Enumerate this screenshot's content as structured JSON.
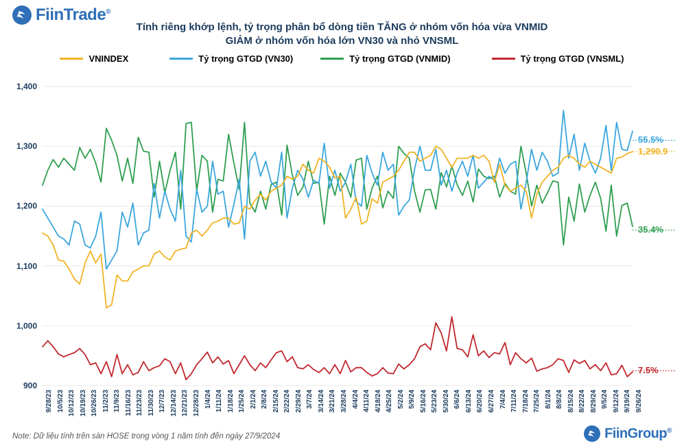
{
  "brand": {
    "top": "FiinTrade",
    "bottom": "FiinGroup",
    "reg": "®"
  },
  "title": {
    "line1": "Tính riêng khớp lệnh, tỷ trọng phân bổ dòng tiền TĂNG ở nhóm vốn hóa vừa VNMID",
    "line2": "GIẢM ở nhóm vốn hóa lớn VN30 và nhỏ VNSML"
  },
  "note": "Note: Dữ liệu tính trên sàn HOSE trong vòng 1 năm tính đến ngày 27/9/2024",
  "legend": {
    "vnindex": {
      "label": "VNINDEX",
      "color": "#f0b323"
    },
    "vn30": {
      "label": "Tỷ trọng GTGD (VN30)",
      "color": "#3aa6dd"
    },
    "vnmid": {
      "label": "Tỷ trọng GTGD (VNMID)",
      "color": "#2e9e4f"
    },
    "vnsml": {
      "label": "Tỷ trọng GTGD (VNSML)",
      "color": "#c1272d"
    }
  },
  "end_labels": {
    "vn30": {
      "text": "55.5%",
      "color": "#3aa6dd",
      "y": 1310
    },
    "vnindex": {
      "text": "1,290.9",
      "color": "#f0b323",
      "y": 1291
    },
    "vnmid": {
      "text": "35.4%",
      "color": "#2e9e4f",
      "y": 1160
    },
    "vnsml": {
      "text": "7.5%",
      "color": "#c1272d",
      "y": 925
    }
  },
  "chart": {
    "type": "line",
    "background_color": "#ffffff",
    "grid_color": "#e8e8e8",
    "text_color": "#1a3a5c",
    "axis_fontsize": 12,
    "x_label_fontsize": 10,
    "line_width": 1.8,
    "ylim": [
      900,
      1400
    ],
    "ytick_step": 100,
    "yticks": [
      900,
      1000,
      1100,
      1200,
      1300,
      1400
    ],
    "x_labels": [
      "9/28/23",
      "10/5/23",
      "10/12/23",
      "10/19/23",
      "10/26/23",
      "11/2/23",
      "11/9/23",
      "11/16/23",
      "11/23/23",
      "11/30/23",
      "12/7/23",
      "12/14/23",
      "12/21/23",
      "12/28/23",
      "1/4/24",
      "1/11/24",
      "1/18/24",
      "1/25/24",
      "2/1/24",
      "2/8/24",
      "2/15/24",
      "2/22/24",
      "2/29/24",
      "3/7/24",
      "3/14/24",
      "3/21/24",
      "3/28/24",
      "4/4/24",
      "4/11/24",
      "4/18/24",
      "4/25/24",
      "5/2/24",
      "5/9/24",
      "5/16/24",
      "5/23/24",
      "5/30/24",
      "6/6/24",
      "6/13/24",
      "6/20/24",
      "6/27/24",
      "7/4/24",
      "7/11/24",
      "7/18/24",
      "7/25/24",
      "8/1/24",
      "8/8/24",
      "8/15/24",
      "8/22/24",
      "8/29/24",
      "9/5/24",
      "9/12/24",
      "9/19/24",
      "9/26/24"
    ],
    "series": {
      "vnindex": {
        "color": "#f0b323",
        "values": [
          1155,
          1150,
          1135,
          1110,
          1108,
          1095,
          1078,
          1070,
          1105,
          1125,
          1105,
          1120,
          1030,
          1035,
          1085,
          1075,
          1075,
          1090,
          1095,
          1100,
          1100,
          1120,
          1125,
          1115,
          1110,
          1125,
          1128,
          1130,
          1155,
          1160,
          1150,
          1160,
          1172,
          1175,
          1180,
          1180,
          1170,
          1172,
          1200,
          1195,
          1210,
          1220,
          1210,
          1225,
          1230,
          1235,
          1250,
          1245,
          1250,
          1270,
          1260,
          1255,
          1280,
          1275,
          1265,
          1247,
          1250,
          1180,
          1195,
          1215,
          1170,
          1175,
          1212,
          1205,
          1240,
          1245,
          1250,
          1260,
          1275,
          1290,
          1290,
          1275,
          1280,
          1285,
          1300,
          1295,
          1280,
          1265,
          1280,
          1280,
          1280,
          1285,
          1280,
          1285,
          1275,
          1240,
          1270,
          1235,
          1225,
          1230,
          1235,
          1225,
          1180,
          1220,
          1240,
          1250,
          1260,
          1265,
          1280,
          1285,
          1280,
          1270,
          1265,
          1275,
          1270,
          1265,
          1260,
          1255,
          1280,
          1282,
          1288,
          1291
        ]
      },
      "vn30": {
        "color": "#3aa6dd",
        "values": [
          1195,
          1180,
          1165,
          1150,
          1145,
          1135,
          1175,
          1170,
          1135,
          1130,
          1150,
          1190,
          1095,
          1110,
          1125,
          1190,
          1165,
          1205,
          1135,
          1155,
          1160,
          1238,
          1180,
          1225,
          1195,
          1175,
          1260,
          1150,
          1140,
          1228,
          1190,
          1200,
          1275,
          1220,
          1225,
          1165,
          1203,
          1245,
          1145,
          1275,
          1290,
          1250,
          1275,
          1240,
          1230,
          1290,
          1180,
          1230,
          1260,
          1245,
          1215,
          1243,
          1238,
          1305,
          1230,
          1260,
          1225,
          1240,
          1270,
          1208,
          1200,
          1285,
          1255,
          1235,
          1290,
          1260,
          1270,
          1185,
          1200,
          1210,
          1262,
          1300,
          1260,
          1260,
          1295,
          1235,
          1260,
          1225,
          1255,
          1275,
          1250,
          1285,
          1230,
          1240,
          1250,
          1243,
          1280,
          1255,
          1270,
          1275,
          1195,
          1240,
          1295,
          1260,
          1290,
          1275,
          1250,
          1255,
          1360,
          1280,
          1320,
          1260,
          1305,
          1275,
          1255,
          1280,
          1335,
          1260,
          1340,
          1295,
          1293,
          1325
        ]
      },
      "vnmid": {
        "color": "#2e9e4f",
        "values": [
          1235,
          1260,
          1278,
          1265,
          1280,
          1270,
          1260,
          1298,
          1280,
          1295,
          1272,
          1240,
          1330,
          1310,
          1285,
          1242,
          1280,
          1238,
          1315,
          1292,
          1290,
          1215,
          1275,
          1222,
          1260,
          1290,
          1195,
          1338,
          1340,
          1225,
          1285,
          1275,
          1190,
          1245,
          1242,
          1320,
          1272,
          1228,
          1340,
          1205,
          1190,
          1225,
          1195,
          1236,
          1240,
          1185,
          1302,
          1252,
          1218,
          1232,
          1275,
          1238,
          1240,
          1170,
          1250,
          1218,
          1255,
          1240,
          1215,
          1277,
          1280,
          1195,
          1230,
          1250,
          1197,
          1225,
          1213,
          1300,
          1288,
          1280,
          1225,
          1190,
          1227,
          1228,
          1195,
          1256,
          1232,
          1267,
          1236,
          1218,
          1242,
          1207,
          1262,
          1250,
          1246,
          1250,
          1215,
          1238,
          1225,
          1220,
          1300,
          1255,
          1200,
          1235,
          1205,
          1222,
          1242,
          1240,
          1135,
          1215,
          1175,
          1237,
          1190,
          1218,
          1240,
          1213,
          1158,
          1235,
          1150,
          1201,
          1205,
          1166
        ]
      },
      "vnsml": {
        "color": "#c1272d",
        "values": [
          965,
          975,
          965,
          953,
          948,
          952,
          955,
          962,
          952,
          935,
          938,
          920,
          940,
          915,
          952,
          920,
          935,
          918,
          922,
          940,
          925,
          930,
          933,
          945,
          940,
          920,
          938,
          910,
          920,
          935,
          945,
          956,
          938,
          948,
          936,
          942,
          920,
          935,
          950,
          935,
          925,
          938,
          930,
          943,
          955,
          958,
          940,
          948,
          930,
          928,
          935,
          927,
          922,
          930,
          920,
          935,
          920,
          942,
          923,
          930,
          930,
          922,
          916,
          920,
          930,
          921,
          920,
          936,
          928,
          935,
          945,
          965,
          970,
          960,
          1005,
          988,
          958,
          1015,
          962,
          960,
          948,
          985,
          950,
          958,
          947,
          955,
          953,
          972,
          935,
          955,
          945,
          938,
          946,
          924,
          928,
          930,
          935,
          945,
          942,
          922,
          943,
          937,
          942,
          928,
          935,
          925,
          938,
          918,
          920,
          934,
          915,
          923
        ]
      }
    }
  }
}
